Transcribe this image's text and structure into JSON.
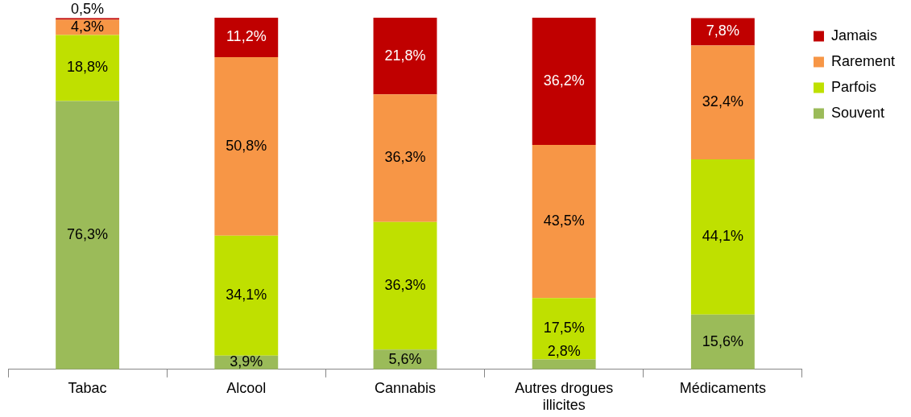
{
  "chart_data": {
    "type": "bar",
    "stacked": true,
    "categories": [
      "Tabac",
      "Alcool",
      "Cannabis",
      "Autres drogues illicites",
      "Médicaments"
    ],
    "series": [
      {
        "name": "Souvent",
        "color": "#9bbb59",
        "values": [
          76.3,
          3.9,
          5.6,
          2.8,
          15.6
        ],
        "value_labels": [
          "76,3%",
          "3,9%",
          "5,6%",
          "2,8%",
          "15,6%"
        ]
      },
      {
        "name": "Parfois",
        "color": "#bfe000",
        "values": [
          18.8,
          34.1,
          36.3,
          17.5,
          44.1
        ],
        "value_labels": [
          "18,8%",
          "34,1%",
          "36,3%",
          "17,5%",
          "44,1%"
        ]
      },
      {
        "name": "Rarement",
        "color": "#f79646",
        "values": [
          4.3,
          50.8,
          36.3,
          43.5,
          32.4
        ],
        "value_labels": [
          "4,3%",
          "50,8%",
          "36,3%",
          "43,5%",
          "32,4%"
        ]
      },
      {
        "name": "Jamais",
        "color": "#c00000",
        "values": [
          0.5,
          11.2,
          21.8,
          36.2,
          7.8
        ],
        "value_labels": [
          "0,5%",
          "11,2%",
          "21,8%",
          "36,2%",
          "7,8%"
        ]
      }
    ],
    "ylim": [
      0,
      100
    ],
    "tick_labels": "x",
    "grid": false,
    "legend": "top right"
  }
}
